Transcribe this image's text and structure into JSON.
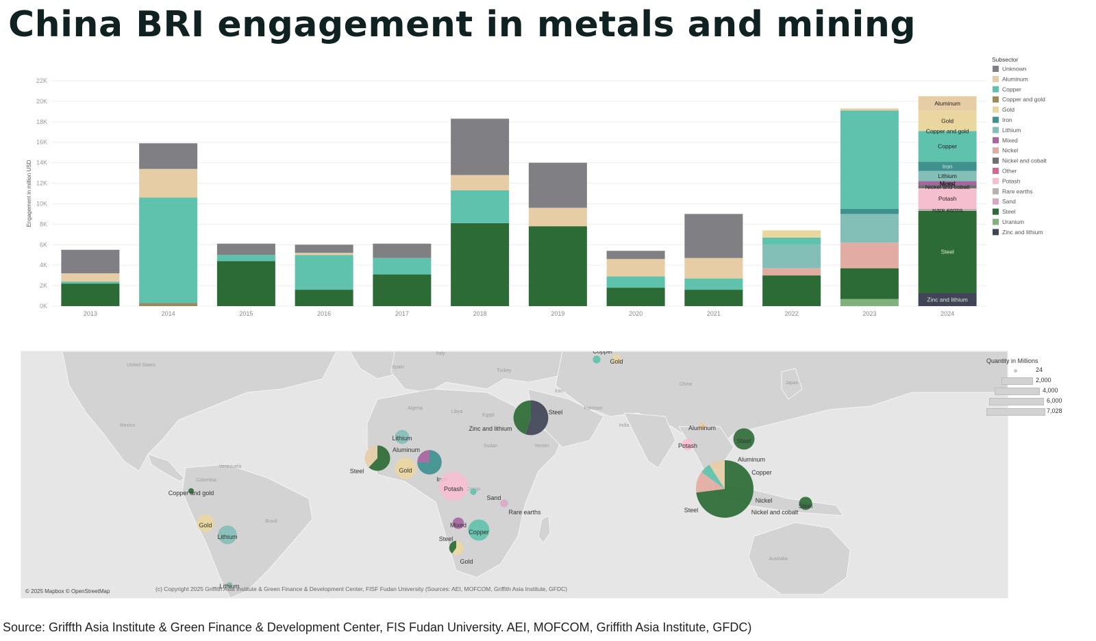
{
  "page_title": "China BRI engagement in metals and mining",
  "source_note": "Source: Griffth Asia Institute & Green Finance & Development Center, FIS Fudan University. AEI, MOFCOM, Griffith Asia Institute, GFDC)",
  "colors": {
    "Unknown": "#7f7f84",
    "Aluminum": "#e6cda6",
    "Copper": "#5ec2ac",
    "Copper and gold": "#9c8a5a",
    "Gold": "#ead7a0",
    "Iron": "#3f9190",
    "Lithium": "#83bfb7",
    "Mixed": "#a566a0",
    "Nickel": "#e3aca3",
    "Nickel and cobalt": "#6f6f6f",
    "Other": "#d4668f",
    "Potash": "#f6bfd0",
    "Rare earths": "#b9b1ad",
    "Sand": "#d9a7c6",
    "Steel": "#2c6b35",
    "Uranium": "#7fb27c",
    "Zinc and lithium": "#3f4556"
  },
  "chart_data": {
    "type": "bar",
    "stacked": true,
    "title": "",
    "xlabel": "",
    "ylabel": "Engagement in million USD",
    "ylim": [
      0,
      22000
    ],
    "yticks": [
      "0K",
      "2K",
      "4K",
      "6K",
      "8K",
      "10K",
      "12K",
      "14K",
      "16K",
      "18K",
      "20K",
      "22K"
    ],
    "grid": true,
    "legend_title": "Subsector",
    "legend_position": "right",
    "categories": [
      "2013",
      "2014",
      "2015",
      "2016",
      "2017",
      "2018",
      "2019",
      "2020",
      "2021",
      "2022",
      "2023",
      "2024"
    ],
    "series": [
      {
        "name": "Zinc and lithium",
        "values": [
          0,
          0,
          0,
          0,
          0,
          0,
          0,
          0,
          0,
          0,
          0,
          1300
        ]
      },
      {
        "name": "Uranium",
        "values": [
          0,
          0,
          0,
          0,
          0,
          0,
          0,
          0,
          0,
          0,
          700,
          0
        ]
      },
      {
        "name": "Steel",
        "values": [
          2200,
          0,
          4400,
          1600,
          3100,
          8100,
          7800,
          1800,
          1600,
          3000,
          3000,
          8000
        ]
      },
      {
        "name": "Copper and gold",
        "values": [
          0,
          300,
          0,
          0,
          0,
          0,
          0,
          0,
          0,
          0,
          0,
          0
        ]
      },
      {
        "name": "Nickel",
        "values": [
          0,
          0,
          0,
          0,
          0,
          0,
          0,
          0,
          0,
          700,
          2500,
          0
        ]
      },
      {
        "name": "Rare earths",
        "values": [
          0,
          0,
          0,
          0,
          0,
          0,
          0,
          0,
          0,
          0,
          0,
          200
        ]
      },
      {
        "name": "Potash",
        "values": [
          0,
          0,
          0,
          0,
          0,
          0,
          0,
          0,
          0,
          0,
          0,
          2000
        ]
      },
      {
        "name": "Nickel and cobalt",
        "values": [
          0,
          0,
          0,
          0,
          0,
          0,
          0,
          0,
          0,
          0,
          0,
          300
        ]
      },
      {
        "name": "Mixed",
        "values": [
          0,
          0,
          0,
          0,
          0,
          0,
          0,
          0,
          0,
          0,
          0,
          400
        ]
      },
      {
        "name": "Lithium",
        "values": [
          0,
          0,
          0,
          0,
          0,
          0,
          0,
          0,
          0,
          2300,
          2800,
          1000
        ]
      },
      {
        "name": "Iron",
        "values": [
          0,
          0,
          0,
          0,
          0,
          0,
          0,
          0,
          0,
          0,
          500,
          900
        ]
      },
      {
        "name": "Copper",
        "values": [
          200,
          10300,
          600,
          3400,
          1600,
          3200,
          0,
          1100,
          1100,
          700,
          9600,
          3000
        ]
      },
      {
        "name": "Gold",
        "values": [
          0,
          0,
          0,
          0,
          0,
          0,
          0,
          0,
          0,
          700,
          0,
          2000
        ]
      },
      {
        "name": "Aluminum",
        "values": [
          800,
          2800,
          0,
          200,
          0,
          1500,
          1800,
          1700,
          2000,
          0,
          200,
          1400
        ]
      },
      {
        "name": "Unknown",
        "values": [
          2300,
          2500,
          1100,
          800,
          1400,
          5500,
          4400,
          800,
          4300,
          0,
          0,
          0
        ]
      }
    ],
    "segment_labels": {
      "2024": {
        "Zinc and lithium": "Zinc and lithium",
        "Steel": "Steel",
        "Rare earths": "Rare earths",
        "Potash": "Potash",
        "Nickel and cobalt": "Nickel and cobalt",
        "Mixed": "Mixed",
        "Lithium": "Lithium",
        "Iron": "Iron",
        "Copper": "Copper",
        "Gold": "Gold",
        "Aluminum": "Aluminum"
      }
    },
    "extra_labels": {
      "2024": [
        {
          "text": "Copper and gold",
          "at": 17100
        },
        {
          "text": "Nickel",
          "at": 11900
        }
      ]
    },
    "legend_items": [
      "Unknown",
      "Aluminum",
      "Copper",
      "Copper and gold",
      "Gold",
      "Iron",
      "Lithium",
      "Mixed",
      "Nickel",
      "Nickel and cobalt",
      "Other",
      "Potash",
      "Rare earths",
      "Sand",
      "Steel",
      "Uranium",
      "Zinc and lithium"
    ]
  },
  "map": {
    "country_labels": [
      "United States",
      "Mexico",
      "Venezuela",
      "Colombia",
      "Brazil",
      "Spain",
      "Italy",
      "Algeria",
      "Libya",
      "Egypt",
      "Sudan",
      "Turkey",
      "Iran",
      "Yemen",
      "Pakistan",
      "India",
      "China",
      "Japan",
      "Australia",
      "Congo"
    ],
    "bubbles": [
      {
        "name": "Copper",
        "value": 60,
        "slices": [
          [
            "Copper",
            1
          ]
        ]
      },
      {
        "name": "Gold",
        "value": 90,
        "slices": [
          [
            "Gold",
            1
          ]
        ]
      },
      {
        "name": "Steel",
        "value": 2400,
        "slices": [
          [
            "Zinc and lithium",
            0.55
          ],
          [
            "Steel",
            0.45
          ]
        ]
      },
      {
        "name": "Zinc and lithium",
        "value": 0,
        "slices": []
      },
      {
        "name": "Aluminum",
        "value": 50,
        "slices": [
          [
            "Aluminum",
            1
          ]
        ]
      },
      {
        "name": "Potash",
        "value": 180,
        "slices": [
          [
            "Potash",
            1
          ]
        ]
      },
      {
        "name": "Steel",
        "value": 800,
        "slices": [
          [
            "Steel",
            1
          ]
        ]
      },
      {
        "name": "Steel",
        "value": 7028,
        "slices": [
          [
            "Steel",
            0.73
          ],
          [
            "Nickel",
            0.12
          ],
          [
            "Copper",
            0.06
          ],
          [
            "Aluminum",
            0.09
          ]
        ]
      },
      {
        "name": "Aluminum",
        "value": 0,
        "slices": []
      },
      {
        "name": "Copper",
        "value": 0,
        "slices": []
      },
      {
        "name": "Nickel",
        "value": 0,
        "slices": []
      },
      {
        "name": "Nickel and cobalt",
        "value": 0,
        "slices": []
      },
      {
        "name": "Steel",
        "value": 250,
        "slices": [
          [
            "Steel",
            1
          ]
        ]
      },
      {
        "name": "Lithium",
        "value": 300,
        "slices": [
          [
            "Lithium",
            1
          ]
        ]
      },
      {
        "name": "Aluminum",
        "value": 0,
        "slices": []
      },
      {
        "name": "Steel",
        "value": 1200,
        "slices": [
          [
            "Steel",
            0.62
          ],
          [
            "Aluminum",
            0.38
          ]
        ]
      },
      {
        "name": "Gold",
        "value": 800,
        "slices": [
          [
            "Gold",
            1
          ]
        ]
      },
      {
        "name": "Iron",
        "value": 1100,
        "slices": [
          [
            "Iron",
            0.75
          ],
          [
            "Mixed",
            0.25
          ]
        ]
      },
      {
        "name": "Potash",
        "value": 1600,
        "slices": [
          [
            "Potash",
            1
          ]
        ]
      },
      {
        "name": "Sand",
        "value": 30,
        "slices": [
          [
            "Copper",
            1
          ]
        ]
      },
      {
        "name": "Rare earths",
        "value": 60,
        "slices": [
          [
            "Sand",
            1
          ]
        ]
      },
      {
        "name": "Mixed",
        "value": 180,
        "slices": [
          [
            "Mixed",
            1
          ]
        ]
      },
      {
        "name": "Copper",
        "value": 800,
        "slices": [
          [
            "Copper",
            1
          ]
        ]
      },
      {
        "name": "Steel",
        "value": 0,
        "slices": []
      },
      {
        "name": "Gold",
        "value": 300,
        "slices": [
          [
            "Gold",
            0.6
          ],
          [
            "Steel",
            0.4
          ]
        ]
      },
      {
        "name": "Copper and gold",
        "value": 20,
        "slices": [
          [
            "Steel",
            1
          ]
        ]
      },
      {
        "name": "Gold",
        "value": 500,
        "slices": [
          [
            "Gold",
            1
          ]
        ]
      },
      {
        "name": "Lithium",
        "value": 600,
        "slices": [
          [
            "Lithium",
            1
          ]
        ]
      },
      {
        "name": "Lithium",
        "value": 20,
        "slices": [
          [
            "Lithium",
            1
          ]
        ]
      }
    ],
    "attribution": "© 2025 Mapbox © OpenStreetMap",
    "copyright": "(c) Copyright 2025 Griffith Asia Institute & Green Finance & Development Center, FISF Fudan University (Sources: AEI, MOFCOM, Griffith Asia Institute, GFDC)",
    "size_legend": {
      "title": "Quantity in Millions",
      "values": [
        "24",
        "2,000",
        "4,000",
        "6,000",
        "7,028"
      ]
    }
  }
}
